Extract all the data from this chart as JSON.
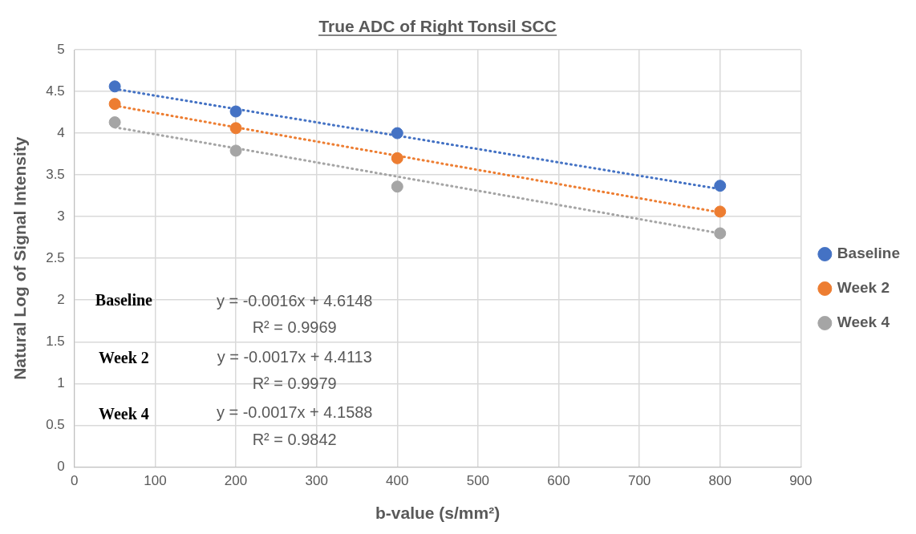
{
  "chart_data": {
    "type": "scatter",
    "title": "True ADC of Right Tonsil SCC",
    "xlabel": "b-value (s/mm²)",
    "ylabel": "Natural Log of Signal Intensity",
    "x": [
      50,
      200,
      400,
      800
    ],
    "series": [
      {
        "name": "Baseline",
        "color": "#4472c4",
        "values": [
          4.56,
          4.26,
          4.0,
          3.37
        ]
      },
      {
        "name": "Week 2",
        "color": "#ed7d31",
        "values": [
          4.35,
          4.06,
          3.7,
          3.06
        ]
      },
      {
        "name": "Week 4",
        "color": "#a5a5a5",
        "values": [
          4.13,
          3.79,
          3.36,
          2.8
        ]
      },
      {
        "type": "line",
        "color": "#4472c4",
        "values": [
          4.53,
          4.29,
          3.97,
          3.33
        ],
        "line_style": "dotted",
        "marker": "none"
      },
      {
        "type": "line",
        "color": "#ed7d31",
        "values": [
          4.33,
          4.07,
          3.73,
          3.05
        ],
        "line_style": "dotted",
        "marker": "none"
      },
      {
        "type": "line",
        "color": "#a5a5a5",
        "values": [
          4.07,
          3.82,
          3.48,
          2.8
        ],
        "line_style": "dotted",
        "marker": "none"
      }
    ],
    "xlim": [
      0,
      900
    ],
    "xticks": [
      0,
      100,
      200,
      300,
      400,
      500,
      600,
      700,
      800,
      900
    ],
    "ylim": [
      0,
      5
    ],
    "yticks": [
      0,
      0.5,
      1,
      1.5,
      2,
      2.5,
      3,
      3.5,
      4,
      4.5,
      5
    ],
    "grid": true,
    "legend": "right",
    "marker": "circle",
    "annotations": [
      "Baseline",
      "y = -0.0016x + 4.6148",
      "R² = 0.9969",
      "Week 2",
      "y = -0.0017x + 4.4113",
      "R² = 0.9979",
      "Week 4",
      "y = -0.0017x + 4.1588",
      "R² = 0.9842"
    ]
  }
}
